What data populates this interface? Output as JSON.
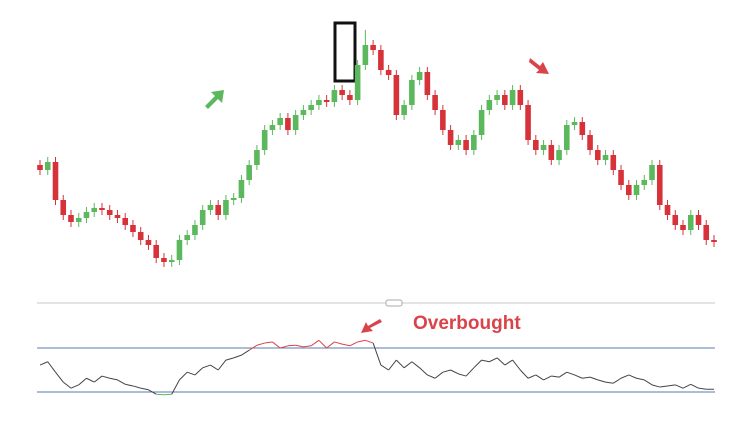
{
  "chart_data": [
    {
      "type": "candlestick",
      "ylim": [
        20,
        280
      ],
      "up_color": "#5cb85c",
      "down_color": "#d6323a",
      "open": [
        135,
        130,
        138,
        100,
        85,
        78,
        82,
        88,
        92,
        90,
        85,
        82,
        75,
        68,
        60,
        55,
        42,
        38,
        40,
        60,
        65,
        75,
        90,
        95,
        85,
        100,
        102,
        120,
        135,
        150,
        170,
        175,
        182,
        170,
        185,
        190,
        195,
        200,
        198,
        210,
        205,
        200,
        235,
        255,
        250,
        230,
        225,
        185,
        195,
        220,
        228,
        205,
        190,
        170,
        155,
        160,
        150,
        165,
        190,
        200,
        205,
        195,
        210,
        195,
        160,
        150,
        155,
        140,
        150,
        175,
        178,
        165,
        150,
        140,
        145,
        130,
        115,
        105,
        115,
        120,
        135,
        95,
        85,
        75,
        70,
        85,
        75,
        60
      ],
      "high": [
        140,
        143,
        143,
        105,
        90,
        87,
        93,
        97,
        97,
        95,
        90,
        87,
        80,
        73,
        65,
        60,
        47,
        45,
        65,
        70,
        80,
        95,
        100,
        100,
        105,
        107,
        125,
        140,
        155,
        175,
        180,
        187,
        187,
        190,
        195,
        200,
        205,
        205,
        215,
        215,
        210,
        240,
        270,
        260,
        255,
        235,
        230,
        200,
        225,
        233,
        233,
        210,
        195,
        175,
        165,
        165,
        170,
        195,
        205,
        210,
        210,
        215,
        215,
        200,
        165,
        160,
        160,
        155,
        180,
        183,
        183,
        170,
        155,
        150,
        150,
        135,
        120,
        120,
        125,
        140,
        140,
        100,
        90,
        80,
        90,
        90,
        80,
        65
      ],
      "low": [
        125,
        125,
        95,
        80,
        73,
        73,
        77,
        83,
        85,
        80,
        77,
        70,
        63,
        55,
        50,
        37,
        33,
        33,
        35,
        55,
        60,
        70,
        85,
        80,
        80,
        95,
        97,
        115,
        130,
        145,
        165,
        170,
        165,
        165,
        180,
        185,
        190,
        193,
        193,
        200,
        195,
        195,
        230,
        245,
        225,
        220,
        180,
        180,
        190,
        215,
        200,
        185,
        165,
        150,
        150,
        145,
        145,
        160,
        185,
        195,
        190,
        190,
        190,
        155,
        145,
        145,
        135,
        135,
        145,
        170,
        160,
        145,
        135,
        135,
        125,
        110,
        100,
        100,
        110,
        115,
        90,
        80,
        70,
        65,
        65,
        70,
        55,
        53
      ],
      "close": [
        130,
        138,
        100,
        85,
        78,
        82,
        88,
        92,
        90,
        85,
        82,
        75,
        68,
        60,
        55,
        42,
        38,
        40,
        60,
        65,
        75,
        90,
        95,
        85,
        100,
        102,
        120,
        135,
        150,
        170,
        175,
        182,
        170,
        185,
        190,
        195,
        200,
        198,
        210,
        205,
        200,
        235,
        255,
        250,
        230,
        225,
        185,
        195,
        220,
        228,
        205,
        190,
        170,
        155,
        160,
        150,
        165,
        190,
        200,
        205,
        195,
        210,
        195,
        160,
        150,
        155,
        140,
        150,
        175,
        178,
        165,
        150,
        140,
        145,
        130,
        115,
        105,
        115,
        120,
        135,
        95,
        85,
        75,
        70,
        85,
        75,
        60,
        58
      ]
    },
    {
      "type": "line",
      "ylim": [
        0,
        100
      ],
      "annotation": "Overbought",
      "annotation_color": "#d9434a",
      "line_color": "#444444",
      "overbought_color": "#d9434a",
      "oversold_color": "#5cb85c",
      "level_color": "#5a7bb0",
      "levels": [
        70,
        30
      ],
      "values": [
        54.5,
        57.5,
        48,
        39,
        33.5,
        36.5,
        42.5,
        39,
        44.5,
        42.5,
        41,
        37,
        35.5,
        33.5,
        32,
        28,
        27.5,
        28,
        41,
        48,
        45.5,
        52,
        54.5,
        50,
        59,
        61,
        63.5,
        68,
        72.5,
        74.5,
        75.5,
        70,
        72,
        72.5,
        71,
        72,
        77,
        70,
        75.5,
        73.5,
        72,
        75.5,
        77,
        74.5,
        54.5,
        50,
        59,
        52,
        57.5,
        52,
        45.5,
        42.5,
        48,
        50,
        46.5,
        44.5,
        52,
        59,
        57.5,
        61,
        54.5,
        59,
        50,
        42.5,
        45.5,
        41,
        44.5,
        43.5,
        48,
        45.5,
        42.5,
        43.5,
        41,
        39,
        38,
        42.5,
        45.5,
        42.5,
        41,
        36.5,
        34.5,
        35.5,
        36.5,
        33.5,
        37,
        33.5,
        32.5,
        32.5
      ]
    }
  ]
}
